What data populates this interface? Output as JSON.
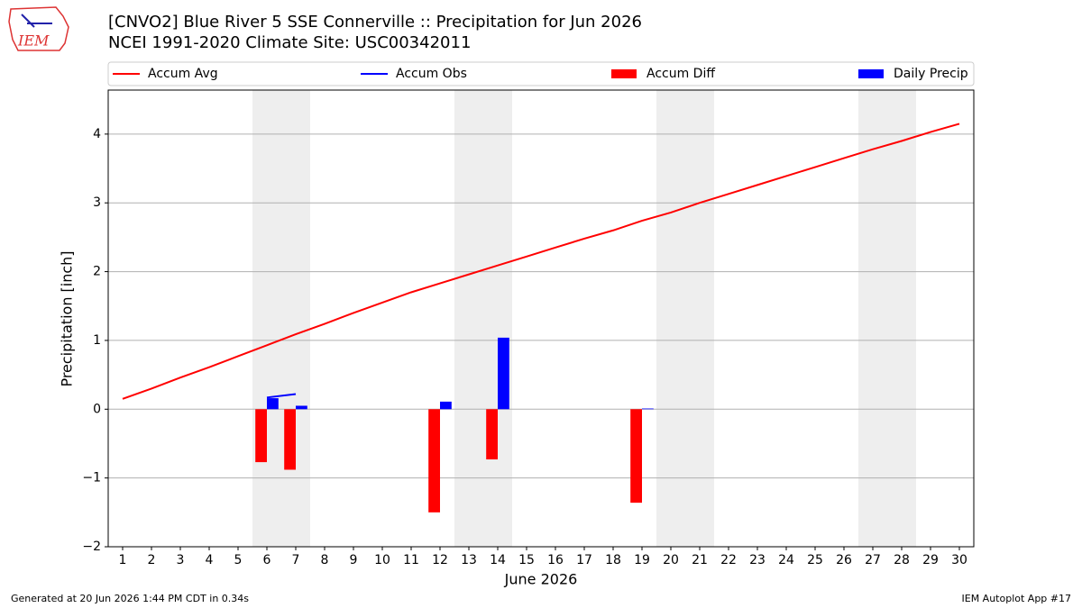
{
  "header": {
    "logo": "IEM"
  },
  "chart_data": {
    "type": "combo",
    "title": "[CNVO2] Blue River 5 SSE Connerville :: Precipitation for Jun 2026",
    "subtitle": "NCEI 1991-2020 Climate Site: USC00342011",
    "x_label": "June 2026",
    "y_label": "Precipitation [inch]",
    "categories": [
      "1",
      "2",
      "3",
      "4",
      "5",
      "6",
      "7",
      "8",
      "9",
      "10",
      "11",
      "12",
      "13",
      "14",
      "15",
      "16",
      "17",
      "18",
      "19",
      "20",
      "21",
      "22",
      "23",
      "24",
      "25",
      "26",
      "27",
      "28",
      "29",
      "30"
    ],
    "weekends": [
      6,
      7,
      13,
      14,
      20,
      21,
      27,
      28
    ],
    "series": [
      {
        "name": "Accum Avg",
        "type": "line",
        "color": "#ff0000",
        "values": [
          0.15,
          0.3,
          0.46,
          0.61,
          0.77,
          0.93,
          1.09,
          1.24,
          1.4,
          1.55,
          1.7,
          1.83,
          1.96,
          2.09,
          2.22,
          2.35,
          2.48,
          2.6,
          2.74,
          2.86,
          3.0,
          3.13,
          3.26,
          3.39,
          3.52,
          3.65,
          3.78,
          3.9,
          4.03,
          4.15
        ]
      },
      {
        "name": "Accum Obs",
        "type": "line",
        "color": "#0000ff",
        "values": [
          null,
          null,
          null,
          null,
          null,
          0.17,
          0.22,
          null,
          null,
          null,
          null,
          null,
          null,
          null,
          null,
          null,
          null,
          null,
          null,
          null,
          null,
          null,
          null,
          null,
          null,
          null,
          null,
          null,
          null,
          null
        ]
      },
      {
        "name": "Accum Diff",
        "type": "bar",
        "color": "#ff0000",
        "values": [
          null,
          null,
          null,
          null,
          null,
          -0.77,
          -0.88,
          null,
          null,
          null,
          null,
          -1.5,
          null,
          -0.73,
          null,
          null,
          null,
          null,
          -1.36,
          null,
          null,
          null,
          null,
          null,
          null,
          null,
          null,
          null,
          null,
          null
        ]
      },
      {
        "name": "Daily Precip",
        "type": "bar",
        "color": "#0000ff",
        "values": [
          null,
          null,
          null,
          null,
          null,
          0.16,
          0.05,
          null,
          null,
          null,
          null,
          0.11,
          null,
          1.04,
          null,
          null,
          null,
          null,
          0.01,
          null,
          null,
          null,
          null,
          null,
          null,
          null,
          null,
          null,
          null,
          null
        ]
      }
    ],
    "ylim": [
      -2,
      4.64
    ],
    "yticks": [
      {
        "value": -2,
        "label": "−2"
      },
      {
        "value": -1,
        "label": "−1"
      },
      0,
      1,
      2,
      3,
      4
    ],
    "grid": true
  },
  "footer": {
    "left": "Generated at 20 Jun 2026 1:44 PM CDT in 0.34s",
    "right": "IEM Autoplot App #17"
  }
}
